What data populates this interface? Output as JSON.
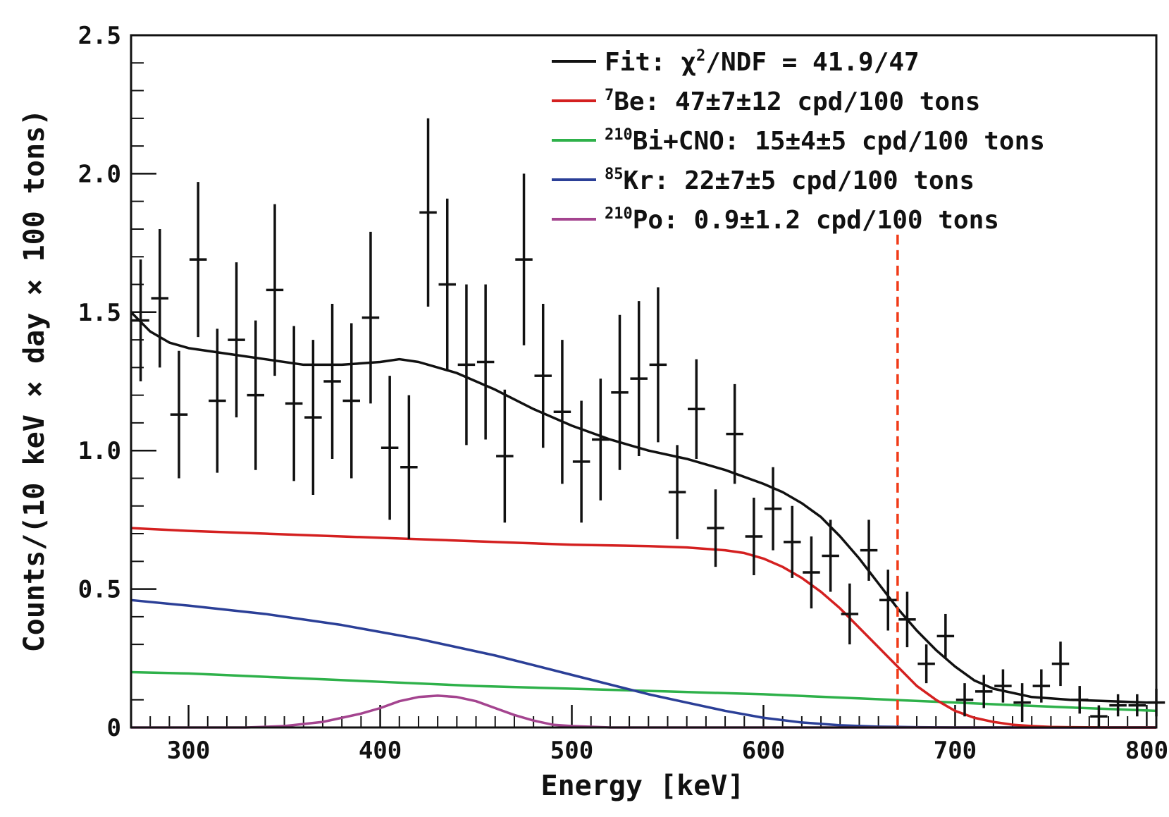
{
  "chart_data": {
    "type": "line",
    "xlabel": "Energy [keV]",
    "ylabel": "Counts/(10 keV × day × 100 tons)",
    "xlim": [
      270,
      805
    ],
    "ylim": [
      0,
      2.5
    ],
    "x_ticks": [
      300,
      400,
      500,
      600,
      700,
      800
    ],
    "x_tick_labels": [
      "300",
      "400",
      "500",
      "600",
      "700",
      "800"
    ],
    "y_ticks": [
      0,
      0.5,
      1.0,
      1.5,
      2.0,
      2.5
    ],
    "y_tick_labels": [
      "0",
      "0.5",
      "1.0",
      "1.5",
      "2.0",
      "2.5"
    ],
    "legend_position": "top-right",
    "legend": [
      {
        "sup": "",
        "text": "Fit: χ",
        "sup2": "2",
        "text2": "/NDF = 41.9/47",
        "color": "#111111"
      },
      {
        "sup": "7",
        "text": "Be: 47±7±12 cpd/100 tons",
        "sup2": "",
        "text2": "",
        "color": "#d42020"
      },
      {
        "sup": "210",
        "text": "Bi+CNO: 15±4±5 cpd/100 tons",
        "sup2": "",
        "text2": "",
        "color": "#2eb14a"
      },
      {
        "sup": "85",
        "text": "Kr: 22±7±5 cpd/100 tons",
        "sup2": "",
        "text2": "",
        "color": "#2b3f97"
      },
      {
        "sup": "210",
        "text": "Po: 0.9±1.2 cpd/100 tons",
        "sup2": "",
        "text2": "",
        "color": "#a4448f"
      }
    ],
    "threshold_line": {
      "x": 670,
      "y_top": 1.78,
      "color": "#f03a17"
    },
    "points": {
      "x": [
        275,
        285,
        295,
        305,
        315,
        325,
        335,
        345,
        355,
        365,
        375,
        385,
        395,
        405,
        415,
        425,
        435,
        445,
        455,
        465,
        475,
        485,
        495,
        505,
        515,
        525,
        535,
        545,
        555,
        565,
        575,
        585,
        595,
        605,
        615,
        625,
        635,
        645,
        655,
        665,
        675,
        685,
        695,
        705,
        715,
        725,
        735,
        745,
        755,
        765,
        775,
        785,
        795,
        805
      ],
      "y": [
        1.47,
        1.55,
        1.13,
        1.69,
        1.18,
        1.4,
        1.2,
        1.58,
        1.17,
        1.12,
        1.25,
        1.18,
        1.48,
        1.01,
        0.94,
        1.86,
        1.6,
        1.31,
        1.32,
        0.98,
        1.69,
        1.27,
        1.14,
        0.96,
        1.04,
        1.21,
        1.26,
        1.31,
        0.85,
        1.15,
        0.72,
        1.06,
        0.69,
        0.79,
        0.67,
        0.56,
        0.62,
        0.41,
        0.64,
        0.46,
        0.39,
        0.23,
        0.33,
        0.1,
        0.13,
        0.15,
        0.09,
        0.15,
        0.23,
        0.1,
        0.04,
        0.08,
        0.08,
        0.09
      ],
      "err": [
        0.22,
        0.25,
        0.23,
        0.28,
        0.26,
        0.28,
        0.27,
        0.31,
        0.28,
        0.28,
        0.28,
        0.28,
        0.31,
        0.26,
        0.26,
        0.34,
        0.31,
        0.29,
        0.28,
        0.24,
        0.31,
        0.26,
        0.26,
        0.22,
        0.22,
        0.28,
        0.28,
        0.28,
        0.17,
        0.18,
        0.14,
        0.18,
        0.14,
        0.15,
        0.13,
        0.13,
        0.13,
        0.11,
        0.11,
        0.11,
        0.1,
        0.07,
        0.08,
        0.06,
        0.06,
        0.06,
        0.07,
        0.06,
        0.08,
        0.05,
        0.04,
        0.04,
        0.04,
        0.05
      ]
    },
    "series": [
      {
        "name": "Fit",
        "color": "#111111",
        "x": [
          270,
          280,
          290,
          300,
          320,
          340,
          360,
          380,
          400,
          410,
          420,
          430,
          440,
          450,
          460,
          480,
          500,
          520,
          540,
          560,
          580,
          600,
          610,
          620,
          630,
          640,
          650,
          660,
          670,
          680,
          690,
          700,
          710,
          720,
          740,
          760,
          780,
          800,
          805
        ],
        "y": [
          1.5,
          1.43,
          1.39,
          1.37,
          1.35,
          1.33,
          1.31,
          1.31,
          1.32,
          1.33,
          1.32,
          1.3,
          1.28,
          1.25,
          1.22,
          1.15,
          1.09,
          1.04,
          1.0,
          0.97,
          0.93,
          0.88,
          0.85,
          0.81,
          0.76,
          0.69,
          0.61,
          0.52,
          0.43,
          0.35,
          0.28,
          0.22,
          0.17,
          0.14,
          0.11,
          0.1,
          0.095,
          0.09,
          0.09
        ]
      },
      {
        "name": "7Be",
        "color": "#d42020",
        "x": [
          270,
          300,
          340,
          380,
          420,
          460,
          500,
          540,
          560,
          580,
          590,
          600,
          610,
          620,
          630,
          640,
          650,
          660,
          670,
          680,
          690,
          700,
          710,
          720,
          730,
          740,
          750,
          760,
          780,
          805
        ],
        "y": [
          0.72,
          0.71,
          0.7,
          0.69,
          0.68,
          0.67,
          0.66,
          0.655,
          0.65,
          0.64,
          0.63,
          0.61,
          0.58,
          0.54,
          0.49,
          0.43,
          0.36,
          0.29,
          0.22,
          0.15,
          0.1,
          0.06,
          0.035,
          0.02,
          0.01,
          0.005,
          0.002,
          0.001,
          0,
          0
        ]
      },
      {
        "name": "210Bi+CNO",
        "color": "#2eb14a",
        "x": [
          270,
          300,
          350,
          400,
          450,
          500,
          550,
          600,
          650,
          700,
          750,
          805
        ],
        "y": [
          0.2,
          0.195,
          0.18,
          0.165,
          0.15,
          0.14,
          0.13,
          0.12,
          0.105,
          0.09,
          0.075,
          0.06
        ]
      },
      {
        "name": "85Kr",
        "color": "#2b3f97",
        "x": [
          270,
          300,
          340,
          380,
          420,
          460,
          500,
          540,
          560,
          580,
          600,
          620,
          640,
          660,
          680,
          700,
          720,
          805
        ],
        "y": [
          0.46,
          0.44,
          0.41,
          0.37,
          0.32,
          0.26,
          0.19,
          0.12,
          0.09,
          0.06,
          0.035,
          0.018,
          0.008,
          0.003,
          0.001,
          0,
          0,
          0
        ]
      },
      {
        "name": "210Po",
        "color": "#a4448f",
        "x": [
          270,
          330,
          350,
          370,
          390,
          400,
          410,
          420,
          430,
          440,
          450,
          460,
          470,
          480,
          490,
          500,
          520,
          560,
          805
        ],
        "y": [
          0,
          0,
          0.005,
          0.02,
          0.05,
          0.07,
          0.095,
          0.11,
          0.115,
          0.11,
          0.095,
          0.07,
          0.045,
          0.025,
          0.01,
          0.005,
          0,
          0,
          0
        ]
      }
    ]
  }
}
